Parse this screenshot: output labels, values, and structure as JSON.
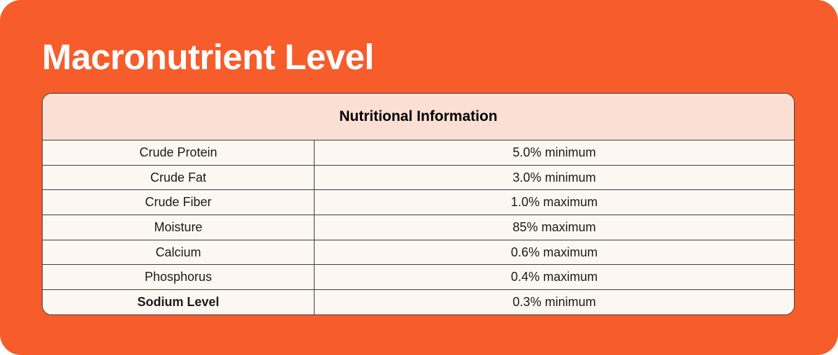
{
  "page": {
    "title": "Macronutrient Level"
  },
  "table": {
    "header": "Nutritional Information",
    "rows": [
      {
        "nutrient": "Crude Protein",
        "level": "5.0% minimum",
        "bold": false
      },
      {
        "nutrient": "Crude Fat",
        "level": "3.0% minimum",
        "bold": false
      },
      {
        "nutrient": "Crude Fiber",
        "level": "1.0% maximum",
        "bold": false
      },
      {
        "nutrient": "Moisture",
        "level": "85% maximum",
        "bold": false
      },
      {
        "nutrient": "Calcium",
        "level": "0.6% maximum",
        "bold": false
      },
      {
        "nutrient": "Phosphorus",
        "level": "0.4% maximum",
        "bold": false
      },
      {
        "nutrient": "Sodium Level",
        "level": "0.3% minimum",
        "bold": true
      }
    ]
  },
  "colors": {
    "orange": "#F75C2B",
    "header_bg": "#FBDFD4",
    "row_bg": "#FDF7F2",
    "border": "#3C3C3C",
    "text": "#1A1A1A",
    "title": "#FFFFFF"
  }
}
